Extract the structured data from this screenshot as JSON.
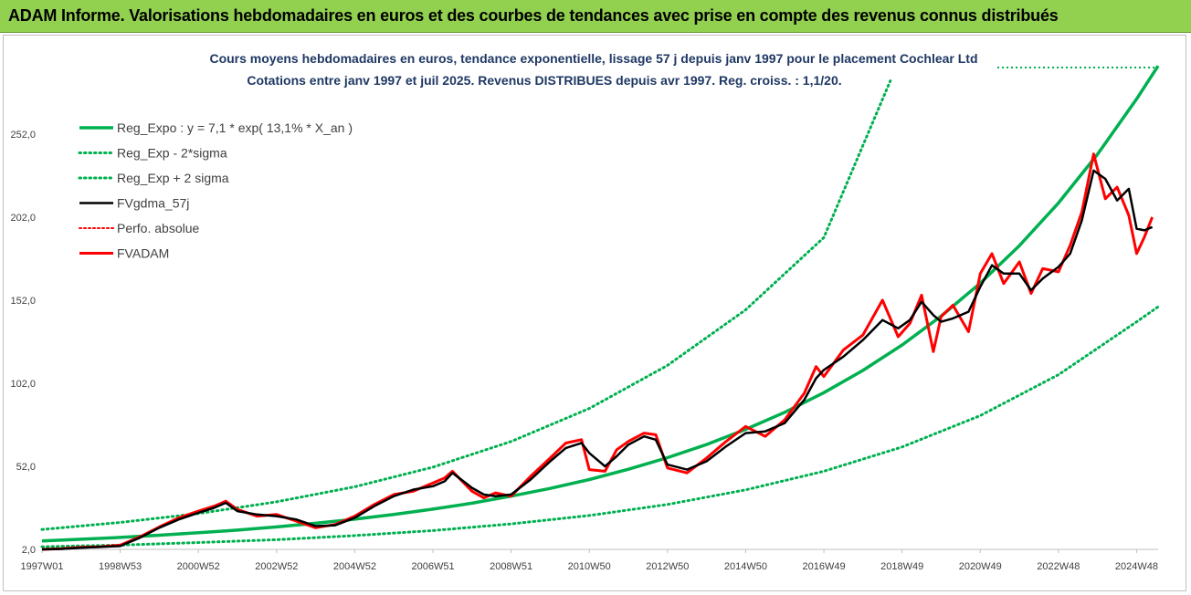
{
  "header": {
    "banner": "ADAM Informe. Valorisations hebdomadaires en euros et des courbes de tendances avec prise en compte des revenus connus distribués",
    "banner_color": "#92d050"
  },
  "chart_data": {
    "type": "line",
    "title": "Cours moyens hebdomadaires en euros, tendance exponentielle, lissage 57 j depuis janv 1997 pour le placement Cochlear Ltd",
    "subtitle": "Cotations entre janv 1997 et juil 2025. Revenus DISTRIBUES depuis avr 1997.  Reg. croiss. : 1,1/20.",
    "xlabel": "",
    "ylabel": "",
    "ylim": [
      2,
      292
    ],
    "yticks": [
      "2,0",
      "52,0",
      "102,0",
      "152,0",
      "202,0",
      "252,0"
    ],
    "xlim": [
      1997.0,
      2025.55
    ],
    "xticks": [
      {
        "label": "1997W01",
        "year": 1997.0
      },
      {
        "label": "1998W53",
        "year": 1999.0
      },
      {
        "label": "2000W52",
        "year": 2001.0
      },
      {
        "label": "2002W52",
        "year": 2003.0
      },
      {
        "label": "2004W52",
        "year": 2005.0
      },
      {
        "label": "2006W51",
        "year": 2007.0
      },
      {
        "label": "2008W51",
        "year": 2009.0
      },
      {
        "label": "2010W50",
        "year": 2011.0
      },
      {
        "label": "2012W50",
        "year": 2013.0
      },
      {
        "label": "2014W50",
        "year": 2015.0
      },
      {
        "label": "2016W49",
        "year": 2017.0
      },
      {
        "label": "2018W49",
        "year": 2019.0
      },
      {
        "label": "2020W49",
        "year": 2021.0
      },
      {
        "label": "2022W48",
        "year": 2023.0
      },
      {
        "label": "2024W48",
        "year": 2025.0
      }
    ],
    "grid": false,
    "legend_position": "top-left",
    "series": [
      {
        "name": "Reg_Expo : y = 7,1 * exp( 13,1% *  X_an )",
        "color": "#00b050",
        "style": "solid",
        "x": [
          1997,
          1998,
          1999,
          2000,
          2001,
          2002,
          2003,
          2004,
          2005,
          2006,
          2007,
          2008,
          2009,
          2010,
          2011,
          2012,
          2013,
          2014,
          2015,
          2016,
          2017,
          2018,
          2019,
          2020,
          2021,
          2022,
          2023,
          2024,
          2025,
          2025.55
        ],
        "y": [
          7.1,
          8.1,
          9.2,
          10.5,
          12.0,
          13.6,
          15.5,
          17.7,
          20.2,
          23.0,
          26.2,
          29.8,
          34.0,
          38.7,
          44.0,
          50.2,
          57.2,
          65.1,
          74.2,
          84.5,
          96.3,
          109.7,
          125.0,
          142.4,
          162.2,
          184.8,
          210.5,
          239.8,
          273.1,
          293.0
        ]
      },
      {
        "name": "Reg_Exp - 2*sigma",
        "color": "#00b050",
        "style": "dotted",
        "x": [
          1997,
          1999,
          2001,
          2003,
          2005,
          2007,
          2009,
          2011,
          2013,
          2015,
          2017,
          2019,
          2021,
          2023,
          2025,
          2025.55
        ],
        "y": [
          3.6,
          4.6,
          6.1,
          7.8,
          10.3,
          13.3,
          17.3,
          22.4,
          29.0,
          37.8,
          49.0,
          63.6,
          82.5,
          107.1,
          139.0,
          148.0
        ]
      },
      {
        "name": "Reg_Exp + 2 sigma",
        "color": "#00b050",
        "style": "dotted",
        "x": [
          1997,
          1999,
          2001,
          2003,
          2005,
          2007,
          2009,
          2011,
          2013,
          2015,
          2017,
          2018.7
        ],
        "y": [
          14.0,
          18.2,
          23.6,
          30.6,
          39.7,
          51.5,
          66.9,
          86.8,
          112.7,
          146.2,
          189.7,
          284.0
        ]
      },
      {
        "name": "FVgdma_57j",
        "color": "#000000",
        "style": "solid",
        "x": [
          1997.0,
          1997.5,
          1998.0,
          1998.5,
          1999.0,
          1999.5,
          2000.0,
          2000.5,
          2001.0,
          2001.4,
          2001.7,
          2002.0,
          2002.5,
          2003.0,
          2003.5,
          2004.0,
          2004.5,
          2005.0,
          2005.5,
          2006.0,
          2006.5,
          2007.0,
          2007.3,
          2007.5,
          2008.0,
          2008.3,
          2008.6,
          2009.0,
          2009.5,
          2010.0,
          2010.4,
          2010.8,
          2011.0,
          2011.4,
          2011.7,
          2012.0,
          2012.4,
          2012.7,
          2013.0,
          2013.5,
          2014.0,
          2014.5,
          2015.0,
          2015.5,
          2016.0,
          2016.5,
          2016.8,
          2017.0,
          2017.5,
          2018.0,
          2018.5,
          2018.9,
          2019.2,
          2019.5,
          2019.8,
          2020.0,
          2020.3,
          2020.7,
          2021.0,
          2021.3,
          2021.6,
          2022.0,
          2022.3,
          2022.6,
          2023.0,
          2023.3,
          2023.6,
          2023.9,
          2024.2,
          2024.5,
          2024.8,
          2025.0,
          2025.2,
          2025.4
        ],
        "y": [
          2.0,
          2.3,
          3.0,
          3.5,
          4.0,
          9.0,
          15.0,
          20.0,
          24.0,
          27.0,
          30.0,
          25.0,
          23.0,
          22.0,
          20.0,
          16.0,
          16.5,
          21.0,
          28.0,
          34.0,
          38.0,
          40.0,
          43.0,
          48.0,
          39.0,
          35.0,
          34.0,
          35.0,
          44.0,
          55.0,
          63.0,
          66.0,
          60.0,
          52.0,
          58.0,
          65.0,
          70.0,
          68.0,
          53.0,
          50.0,
          55.0,
          64.0,
          72.0,
          73.0,
          78.0,
          92.0,
          105.0,
          110.0,
          118.0,
          128.0,
          140.0,
          135.0,
          140.0,
          151.0,
          143.0,
          139.0,
          141.0,
          145.0,
          160.0,
          173.0,
          168.0,
          168.0,
          158.0,
          165.0,
          172.0,
          180.0,
          200.0,
          230.0,
          225.0,
          212.0,
          219.0,
          195.0,
          194.0,
          196.0
        ]
      },
      {
        "name": "Perfo. absolue",
        "color": "#ff0000",
        "style": "dotted",
        "x": [],
        "y": []
      },
      {
        "name": "FVADAM",
        "color": "#ff0000",
        "style": "solid",
        "x": [
          1997.0,
          1997.5,
          1998.0,
          1998.5,
          1999.0,
          1999.5,
          2000.0,
          2000.5,
          2001.0,
          2001.4,
          2001.7,
          2002.0,
          2002.5,
          2003.0,
          2003.5,
          2004.0,
          2004.5,
          2005.0,
          2005.5,
          2006.0,
          2006.5,
          2007.0,
          2007.3,
          2007.5,
          2008.0,
          2008.3,
          2008.6,
          2009.0,
          2009.5,
          2010.0,
          2010.4,
          2010.8,
          2011.0,
          2011.4,
          2011.7,
          2012.0,
          2012.4,
          2012.7,
          2013.0,
          2013.5,
          2014.0,
          2014.5,
          2015.0,
          2015.5,
          2016.0,
          2016.5,
          2016.8,
          2017.0,
          2017.5,
          2018.0,
          2018.5,
          2018.9,
          2019.2,
          2019.5,
          2019.8,
          2020.0,
          2020.3,
          2020.7,
          2021.0,
          2021.3,
          2021.6,
          2022.0,
          2022.3,
          2022.6,
          2023.0,
          2023.3,
          2023.6,
          2023.9,
          2024.2,
          2024.5,
          2024.8,
          2025.0,
          2025.2,
          2025.4
        ],
        "y": [
          2.0,
          2.4,
          3.2,
          3.6,
          4.5,
          9.5,
          15.5,
          21.0,
          25.0,
          28.0,
          31.0,
          26.0,
          22.0,
          23.0,
          19.0,
          15.0,
          17.0,
          22.0,
          29.0,
          35.0,
          37.0,
          42.0,
          45.0,
          49.0,
          37.0,
          33.0,
          36.0,
          34.0,
          46.0,
          57.0,
          66.0,
          68.0,
          50.0,
          49.0,
          62.0,
          67.0,
          72.0,
          71.0,
          51.0,
          48.0,
          57.0,
          67.0,
          76.0,
          70.0,
          80.0,
          96.0,
          112.0,
          106.0,
          122.0,
          131.0,
          152.0,
          130.0,
          138.0,
          155.0,
          121.0,
          142.0,
          149.0,
          133.0,
          168.0,
          180.0,
          162.0,
          175.0,
          156.0,
          171.0,
          169.0,
          185.0,
          205.0,
          240.0,
          213.0,
          220.0,
          203.0,
          180.0,
          190.0,
          202.0
        ]
      }
    ]
  }
}
